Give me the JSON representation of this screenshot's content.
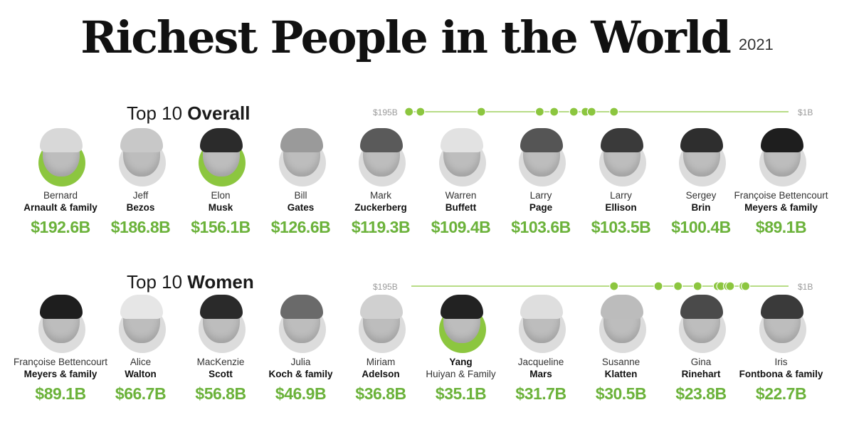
{
  "title": "Richest People in the World",
  "year": "2021",
  "colors": {
    "accent": "#8cc63f",
    "worth": "#6bb23a",
    "scale_line": "#8cc63f",
    "label_grey": "#9a9a9a"
  },
  "scale": {
    "max_label": "$195B",
    "min_label": "$1B",
    "max": 195,
    "min": 1
  },
  "overall": {
    "heading_light": "Top 10 ",
    "heading_bold": "Overall",
    "people": [
      {
        "first": "Bernard",
        "last": "Arnault & family",
        "worth": "$192.6B",
        "value": 192.6,
        "ring": "green",
        "hair": "#d8d8d8"
      },
      {
        "first": "Jeff",
        "last": "Bezos",
        "worth": "$186.8B",
        "value": 186.8,
        "ring": "grey",
        "hair": "#c8c8c8"
      },
      {
        "first": "Elon",
        "last": "Musk",
        "worth": "$156.1B",
        "value": 156.1,
        "ring": "green",
        "hair": "#2b2b2b"
      },
      {
        "first": "Bill",
        "last": "Gates",
        "worth": "$126.6B",
        "value": 126.6,
        "ring": "grey",
        "hair": "#9a9a9a"
      },
      {
        "first": "Mark",
        "last": "Zuckerberg",
        "worth": "$119.3B",
        "value": 119.3,
        "ring": "grey",
        "hair": "#5a5a5a"
      },
      {
        "first": "Warren",
        "last": "Buffett",
        "worth": "$109.4B",
        "value": 109.4,
        "ring": "grey",
        "hair": "#e2e2e2"
      },
      {
        "first": "Larry",
        "last": "Page",
        "worth": "$103.6B",
        "value": 103.6,
        "ring": "grey",
        "hair": "#555555"
      },
      {
        "first": "Larry",
        "last": "Ellison",
        "worth": "$103.5B",
        "value": 103.5,
        "ring": "grey",
        "hair": "#3a3a3a"
      },
      {
        "first": "Sergey",
        "last": "Brin",
        "worth": "$100.4B",
        "value": 100.4,
        "ring": "grey",
        "hair": "#2e2e2e"
      },
      {
        "first": "Françoise Bettencourt",
        "last": "Meyers & family",
        "worth": "$89.1B",
        "value": 89.1,
        "ring": "grey",
        "hair": "#1e1e1e"
      }
    ]
  },
  "women": {
    "heading_light": "Top 10 ",
    "heading_bold": "Women",
    "people": [
      {
        "first": "Françoise Bettencourt",
        "last": "Meyers & family",
        "worth": "$89.1B",
        "value": 89.1,
        "ring": "grey",
        "hair": "#1e1e1e",
        "last_bold": true
      },
      {
        "first": "Alice",
        "last": "Walton",
        "worth": "$66.7B",
        "value": 66.7,
        "ring": "grey",
        "hair": "#e6e6e6",
        "last_bold": true
      },
      {
        "first": "MacKenzie",
        "last": "Scott",
        "worth": "$56.8B",
        "value": 56.8,
        "ring": "grey",
        "hair": "#2a2a2a",
        "last_bold": true
      },
      {
        "first": "Julia",
        "last": "Koch & family",
        "worth": "$46.9B",
        "value": 46.9,
        "ring": "grey",
        "hair": "#6a6a6a",
        "last_bold": true
      },
      {
        "first": "Miriam",
        "last": "Adelson",
        "worth": "$36.8B",
        "value": 36.8,
        "ring": "grey",
        "hair": "#d0d0d0",
        "last_bold": true
      },
      {
        "first": "Yang",
        "last": "Huiyan & Family",
        "worth": "$35.1B",
        "value": 35.1,
        "ring": "green",
        "hair": "#222222",
        "first_bold": true
      },
      {
        "first": "Jacqueline",
        "last": "Mars",
        "worth": "$31.7B",
        "value": 31.7,
        "ring": "grey",
        "hair": "#dedede",
        "last_bold": true
      },
      {
        "first": "Susanne",
        "last": "Klatten",
        "worth": "$30.5B",
        "value": 30.5,
        "ring": "grey",
        "hair": "#bcbcbc",
        "last_bold": true
      },
      {
        "first": "Gina",
        "last": "Rinehart",
        "worth": "$23.8B",
        "value": 23.8,
        "ring": "grey",
        "hair": "#4a4a4a",
        "last_bold": true
      },
      {
        "first": "Iris",
        "last": "Fontbona & family",
        "worth": "$22.7B",
        "value": 22.7,
        "ring": "grey",
        "hair": "#3a3a3a",
        "last_bold": true
      }
    ]
  },
  "chart_data": [
    {
      "type": "scatter",
      "title": "Top 10 Overall",
      "xlim": [
        195,
        1
      ],
      "categories": [
        "Bernard Arnault & family",
        "Jeff Bezos",
        "Elon Musk",
        "Bill Gates",
        "Mark Zuckerberg",
        "Warren Buffett",
        "Larry Page",
        "Larry Ellison",
        "Sergey Brin",
        "Françoise Bettencourt Meyers & family"
      ],
      "values": [
        192.6,
        186.8,
        156.1,
        126.6,
        119.3,
        109.4,
        103.6,
        103.5,
        100.4,
        89.1
      ]
    },
    {
      "type": "scatter",
      "title": "Top 10 Women",
      "xlim": [
        195,
        1
      ],
      "categories": [
        "Françoise Bettencourt Meyers & family",
        "Alice Walton",
        "MacKenzie Scott",
        "Julia Koch & family",
        "Miriam Adelson",
        "Yang Huiyan & Family",
        "Jacqueline Mars",
        "Susanne Klatten",
        "Gina Rinehart",
        "Iris Fontbona & family"
      ],
      "values": [
        89.1,
        66.7,
        56.8,
        46.9,
        36.8,
        35.1,
        31.7,
        30.5,
        23.8,
        22.7
      ]
    }
  ]
}
